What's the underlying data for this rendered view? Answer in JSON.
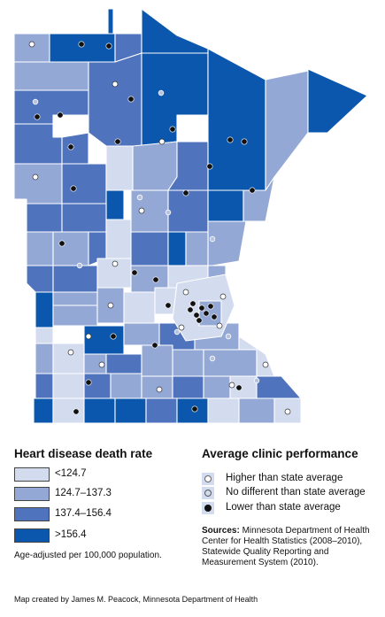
{
  "map": {
    "colors": {
      "lt_124_7": "#d3dbef",
      "r124_7_137_3": "#94a8d6",
      "r137_4_156_4": "#4f73bd",
      "gt_156_4": "#0a57ad"
    }
  },
  "legend_rate": {
    "title": "Heart disease death rate",
    "items": [
      {
        "label": "<124.7",
        "color": "#d3dbef"
      },
      {
        "label": "124.7–137.3",
        "color": "#94a8d6"
      },
      {
        "label": "137.4–156.4",
        "color": "#4f73bd"
      },
      {
        "label": ">156.4",
        "color": "#0a57ad"
      }
    ],
    "note": "Age-adjusted per 100,000 population."
  },
  "legend_clinic": {
    "title": "Average clinic performance",
    "items": [
      {
        "label": "Higher than state average",
        "marker": "open-circle"
      },
      {
        "label": "No different than state average",
        "marker": "light-circle"
      },
      {
        "label": "Lower than state average",
        "marker": "filled-circle"
      }
    ]
  },
  "sources": {
    "label": "Sources:",
    "text": "Minnesota Department of Health Center for Health Statistics (2008–2010), Statewide Quality Reporting and Measurement System (2010)."
  },
  "credit": "Map created by James M. Peacock, Minnesota Department of Health"
}
